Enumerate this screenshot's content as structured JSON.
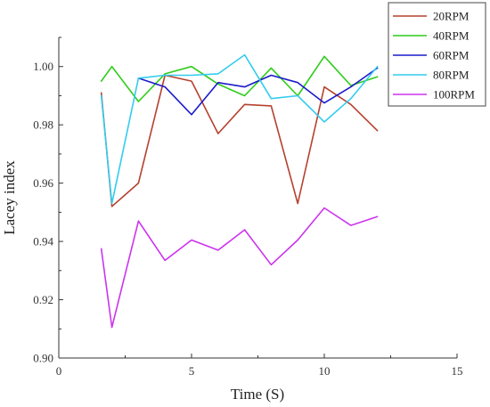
{
  "chart_data": {
    "type": "line",
    "xlabel": "Time (S)",
    "ylabel": "Lacey index",
    "xlim": [
      0,
      15
    ],
    "ylim": [
      0.9,
      1.01
    ],
    "x_ticks": [
      "0",
      "5",
      "10",
      "15"
    ],
    "y_ticks": [
      "0.90",
      "0.92",
      "0.94",
      "0.96",
      "0.98",
      "1.00"
    ],
    "grid": false,
    "legend_position": "top-right",
    "series": [
      {
        "name": "20RPM",
        "color": "#b5412e",
        "x": [
          1.6,
          2,
          3,
          4,
          5,
          6,
          7,
          8,
          9,
          10,
          11,
          12
        ],
        "y": [
          0.991,
          0.952,
          0.96,
          0.997,
          0.995,
          0.977,
          0.987,
          0.9865,
          0.953,
          0.993,
          0.987,
          0.978
        ]
      },
      {
        "name": "40RPM",
        "color": "#2ecc1a",
        "x": [
          1.6,
          2,
          3,
          4,
          5,
          6,
          7,
          8,
          9,
          10,
          11,
          12
        ],
        "y": [
          0.995,
          1.0,
          0.988,
          0.9975,
          1.0,
          0.994,
          0.99,
          0.9995,
          0.99,
          1.0035,
          0.9935,
          0.9965
        ]
      },
      {
        "name": "60RPM",
        "color": "#1a1acc",
        "x": [
          3,
          4,
          5,
          6,
          7,
          8,
          9,
          10,
          11,
          12
        ],
        "y": [
          0.996,
          0.993,
          0.9835,
          0.9945,
          0.993,
          0.997,
          0.9945,
          0.9875,
          0.993,
          0.9995
        ]
      },
      {
        "name": "80RPM",
        "color": "#33ccee",
        "x": [
          1.6,
          2,
          3,
          4,
          5,
          6,
          7,
          8,
          9,
          10,
          11,
          12
        ],
        "y": [
          0.99,
          0.953,
          0.996,
          0.997,
          0.997,
          0.9975,
          1.004,
          0.989,
          0.99,
          0.981,
          0.989,
          1.0
        ]
      },
      {
        "name": "100RPM",
        "color": "#cc33ee",
        "x": [
          1.6,
          2,
          3,
          4,
          5,
          6,
          7,
          8,
          9,
          10,
          11,
          12
        ],
        "y": [
          0.9375,
          0.9105,
          0.947,
          0.9335,
          0.9405,
          0.937,
          0.944,
          0.932,
          0.9405,
          0.9515,
          0.9455,
          0.9485
        ]
      }
    ]
  }
}
